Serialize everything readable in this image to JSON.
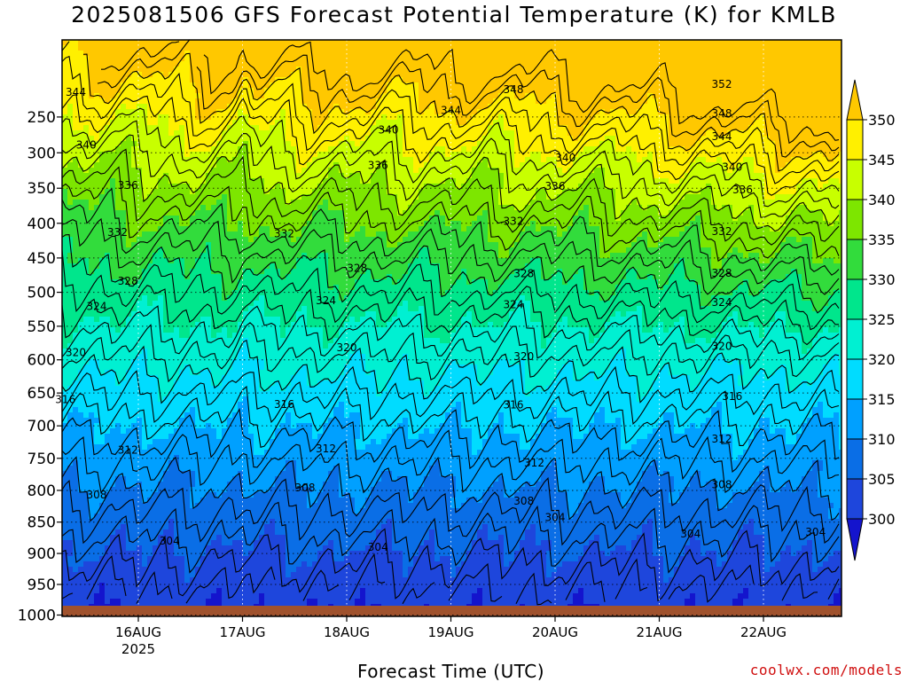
{
  "chart_data": {
    "type": "heatmap",
    "title": "2025081506 GFS Forecast Potential Temperature (K) for KMLB",
    "xlabel": "Forecast Time (UTC)",
    "ylabel": "",
    "credit": "coolwx.com/models",
    "y_ticks": [
      "250",
      "300",
      "350",
      "400",
      "450",
      "500",
      "550",
      "600",
      "650",
      "700",
      "750",
      "800",
      "850",
      "900",
      "950",
      "1000"
    ],
    "y_tick_values": [
      250,
      300,
      350,
      400,
      450,
      500,
      550,
      600,
      650,
      700,
      750,
      800,
      850,
      900,
      950,
      1000
    ],
    "x_ticks": [
      {
        "label": "16AUG",
        "sub": "2025",
        "day": 16
      },
      {
        "label": "17AUG",
        "sub": "",
        "day": 17
      },
      {
        "label": "18AUG",
        "sub": "",
        "day": 18
      },
      {
        "label": "19AUG",
        "sub": "",
        "day": 19
      },
      {
        "label": "20AUG",
        "sub": "",
        "day": 20
      },
      {
        "label": "21AUG",
        "sub": "",
        "day": 21
      },
      {
        "label": "22AUG",
        "sub": "",
        "day": 22
      }
    ],
    "colorbar": {
      "labels": [
        "350",
        "345",
        "340",
        "335",
        "330",
        "325",
        "320",
        "315",
        "310",
        "305",
        "300"
      ],
      "colors": [
        "#ffc800",
        "#fff000",
        "#c8ff00",
        "#7de600",
        "#32dc3c",
        "#00e68c",
        "#00f0d2",
        "#00dcff",
        "#00a0ff",
        "#0a6ee6",
        "#1e46dc",
        "#1414cd"
      ],
      "over_color": "#ffc800",
      "under_color": "#1414cd"
    },
    "ground_color": "#a0522d",
    "contour_labels": [
      {
        "value": "344",
        "day": 15.4,
        "p": 216
      },
      {
        "value": "348",
        "day": 19.6,
        "p": 212
      },
      {
        "value": "352",
        "day": 21.6,
        "p": 205
      },
      {
        "value": "344",
        "day": 19.0,
        "p": 241
      },
      {
        "value": "348",
        "day": 21.6,
        "p": 245
      },
      {
        "value": "340",
        "day": 15.5,
        "p": 289
      },
      {
        "value": "340",
        "day": 18.4,
        "p": 268
      },
      {
        "value": "344",
        "day": 21.6,
        "p": 277
      },
      {
        "value": "340",
        "day": 20.1,
        "p": 307
      },
      {
        "value": "336",
        "day": 18.3,
        "p": 318
      },
      {
        "value": "340",
        "day": 21.7,
        "p": 320
      },
      {
        "value": "336",
        "day": 15.9,
        "p": 346
      },
      {
        "value": "336",
        "day": 20.0,
        "p": 347
      },
      {
        "value": "336",
        "day": 21.8,
        "p": 352
      },
      {
        "value": "332",
        "day": 15.8,
        "p": 413
      },
      {
        "value": "332",
        "day": 17.4,
        "p": 415
      },
      {
        "value": "332",
        "day": 19.6,
        "p": 397
      },
      {
        "value": "332",
        "day": 21.6,
        "p": 412
      },
      {
        "value": "328",
        "day": 18.1,
        "p": 465
      },
      {
        "value": "328",
        "day": 15.9,
        "p": 484
      },
      {
        "value": "328",
        "day": 19.7,
        "p": 473
      },
      {
        "value": "328",
        "day": 21.6,
        "p": 472
      },
      {
        "value": "324",
        "day": 15.6,
        "p": 521
      },
      {
        "value": "324",
        "day": 17.8,
        "p": 512
      },
      {
        "value": "324",
        "day": 19.6,
        "p": 518
      },
      {
        "value": "324",
        "day": 21.6,
        "p": 515
      },
      {
        "value": "320",
        "day": 15.4,
        "p": 589
      },
      {
        "value": "320",
        "day": 18.0,
        "p": 582
      },
      {
        "value": "320",
        "day": 19.7,
        "p": 595
      },
      {
        "value": "320",
        "day": 21.6,
        "p": 580
      },
      {
        "value": "316",
        "day": 15.3,
        "p": 660
      },
      {
        "value": "316",
        "day": 17.4,
        "p": 667
      },
      {
        "value": "316",
        "day": 19.6,
        "p": 668
      },
      {
        "value": "316",
        "day": 21.7,
        "p": 655
      },
      {
        "value": "312",
        "day": 15.9,
        "p": 737
      },
      {
        "value": "312",
        "day": 17.8,
        "p": 735
      },
      {
        "value": "312",
        "day": 19.8,
        "p": 757
      },
      {
        "value": "312",
        "day": 21.6,
        "p": 720
      },
      {
        "value": "308",
        "day": 15.6,
        "p": 807
      },
      {
        "value": "308",
        "day": 17.6,
        "p": 796
      },
      {
        "value": "308",
        "day": 19.7,
        "p": 817
      },
      {
        "value": "308",
        "day": 21.6,
        "p": 791
      },
      {
        "value": "304",
        "day": 16.3,
        "p": 880
      },
      {
        "value": "304",
        "day": 18.3,
        "p": 890
      },
      {
        "value": "304",
        "day": 20.0,
        "p": 843
      },
      {
        "value": "304",
        "day": 21.3,
        "p": 869
      },
      {
        "value": "304",
        "day": 22.5,
        "p": 866
      }
    ]
  }
}
